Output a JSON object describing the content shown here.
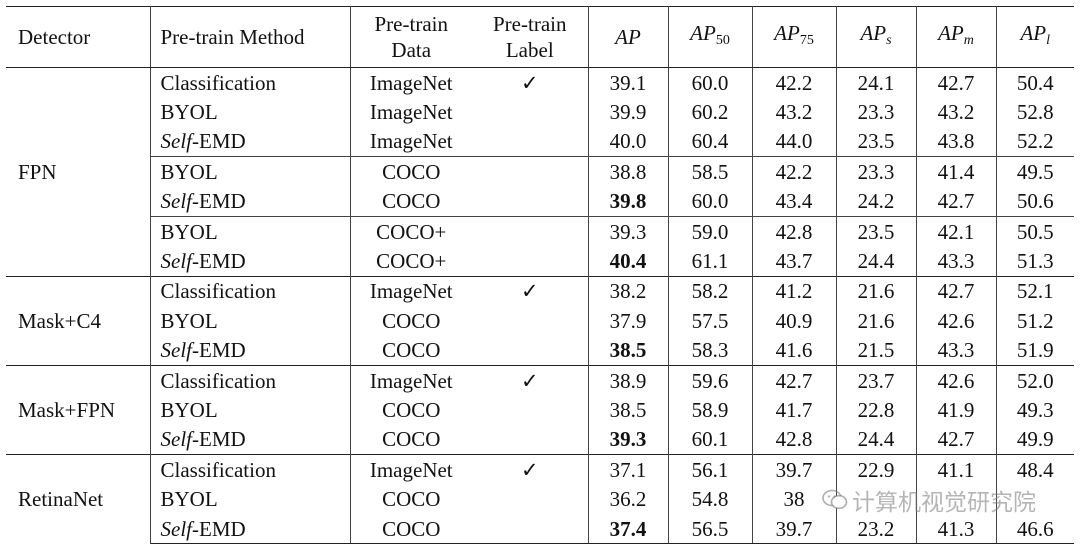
{
  "table": {
    "headers": {
      "detector": "Detector",
      "method": "Pre-train Method",
      "data_line1": "Pre-train",
      "data_line2": "Data",
      "label_line1": "Pre-train",
      "label_line2": "Label",
      "ap": "AP",
      "ap50": "AP",
      "ap50_sub": "50",
      "ap75": "AP",
      "ap75_sub": "75",
      "aps": "AP",
      "aps_sub": "s",
      "apm": "AP",
      "apm_sub": "m",
      "apl": "AP",
      "apl_sub": "l"
    },
    "blocks": [
      {
        "detector": "FPN",
        "rows": [
          {
            "method": "Classification",
            "method_italic_prefix": "",
            "data": "ImageNet",
            "label": "✓",
            "ap": "39.1",
            "ap50": "60.0",
            "ap75": "42.2",
            "aps": "24.1",
            "apm": "42.7",
            "apl": "50.4"
          },
          {
            "method": "BYOL",
            "method_italic_prefix": "",
            "data": "ImageNet",
            "label": "",
            "ap": "39.9",
            "ap50": "60.2",
            "ap75": "43.2",
            "aps": "23.3",
            "apm": "43.2",
            "apl": "52.8"
          },
          {
            "method": "-EMD",
            "method_italic_prefix": "Self",
            "data": "ImageNet",
            "label": "",
            "ap": "40.0",
            "ap50": "60.4",
            "ap75": "44.0",
            "aps": "23.5",
            "apm": "43.8",
            "apl": "52.2"
          },
          {
            "method": "BYOL",
            "method_italic_prefix": "",
            "data": "COCO",
            "label": "",
            "ap": "38.8",
            "ap50": "58.5",
            "ap75": "42.2",
            "aps": "23.3",
            "apm": "41.4",
            "apl": "49.5"
          },
          {
            "method": "-EMD",
            "method_italic_prefix": "Self",
            "data": "COCO",
            "label": "",
            "ap": "39.8",
            "ap_bold": true,
            "ap50": "60.0",
            "ap75": "43.4",
            "aps": "24.2",
            "apm": "42.7",
            "apl": "50.6"
          },
          {
            "method": "BYOL",
            "method_italic_prefix": "",
            "data": "COCO+",
            "label": "",
            "ap": "39.3",
            "ap50": "59.0",
            "ap75": "42.8",
            "aps": "23.5",
            "apm": "42.1",
            "apl": "50.5"
          },
          {
            "method": "-EMD",
            "method_italic_prefix": "Self",
            "data": "COCO+",
            "label": "",
            "ap": "40.4",
            "ap_bold": true,
            "ap50": "61.1",
            "ap75": "43.7",
            "aps": "24.4",
            "apm": "43.3",
            "apl": "51.3"
          }
        ]
      },
      {
        "detector": "Mask+C4",
        "rows": [
          {
            "method": "Classification",
            "method_italic_prefix": "",
            "data": "ImageNet",
            "label": "✓",
            "ap": "38.2",
            "ap50": "58.2",
            "ap75": "41.2",
            "aps": "21.6",
            "apm": "42.7",
            "apl": "52.1"
          },
          {
            "method": "BYOL",
            "method_italic_prefix": "",
            "data": "COCO",
            "label": "",
            "ap": "37.9",
            "ap50": "57.5",
            "ap75": "40.9",
            "aps": "21.6",
            "apm": "42.6",
            "apl": "51.2"
          },
          {
            "method": "-EMD",
            "method_italic_prefix": "Self",
            "data": "COCO",
            "label": "",
            "ap": "38.5",
            "ap_bold": true,
            "ap50": "58.3",
            "ap75": "41.6",
            "aps": "21.5",
            "apm": "43.3",
            "apl": "51.9"
          }
        ]
      },
      {
        "detector": "Mask+FPN",
        "rows": [
          {
            "method": "Classification",
            "method_italic_prefix": "",
            "data": "ImageNet",
            "label": "✓",
            "ap": "38.9",
            "ap50": "59.6",
            "ap75": "42.7",
            "aps": "23.7",
            "apm": "42.6",
            "apl": "52.0"
          },
          {
            "method": "BYOL",
            "method_italic_prefix": "",
            "data": "COCO",
            "label": "",
            "ap": "38.5",
            "ap50": "58.9",
            "ap75": "41.7",
            "aps": "22.8",
            "apm": "41.9",
            "apl": "49.3"
          },
          {
            "method": "-EMD",
            "method_italic_prefix": "Self",
            "data": "COCO",
            "label": "",
            "ap": "39.3",
            "ap_bold": true,
            "ap50": "60.1",
            "ap75": "42.8",
            "aps": "24.4",
            "apm": "42.7",
            "apl": "49.9"
          }
        ]
      },
      {
        "detector": "RetinaNet",
        "rows": [
          {
            "method": "Classification",
            "method_italic_prefix": "",
            "data": "ImageNet",
            "label": "✓",
            "ap": "37.1",
            "ap50": "56.1",
            "ap75": "39.7",
            "aps": "22.9",
            "apm": "41.1",
            "apl": "48.4"
          },
          {
            "method": "BYOL",
            "method_italic_prefix": "",
            "data": "COCO",
            "label": "",
            "ap": "36.2",
            "ap50": "54.8",
            "ap75": "38",
            "aps": "",
            "apm": "",
            "apl": ""
          },
          {
            "method": "-EMD",
            "method_italic_prefix": "Self",
            "data": "COCO",
            "label": "",
            "ap": "37.4",
            "ap_bold": true,
            "ap50": "56.5",
            "ap75": "39.7",
            "aps": "23.2",
            "apm": "41.3",
            "apl": "46.6"
          }
        ]
      }
    ]
  },
  "watermark": {
    "text": "计算机视觉研究院",
    "icon": "wechat-icon"
  }
}
